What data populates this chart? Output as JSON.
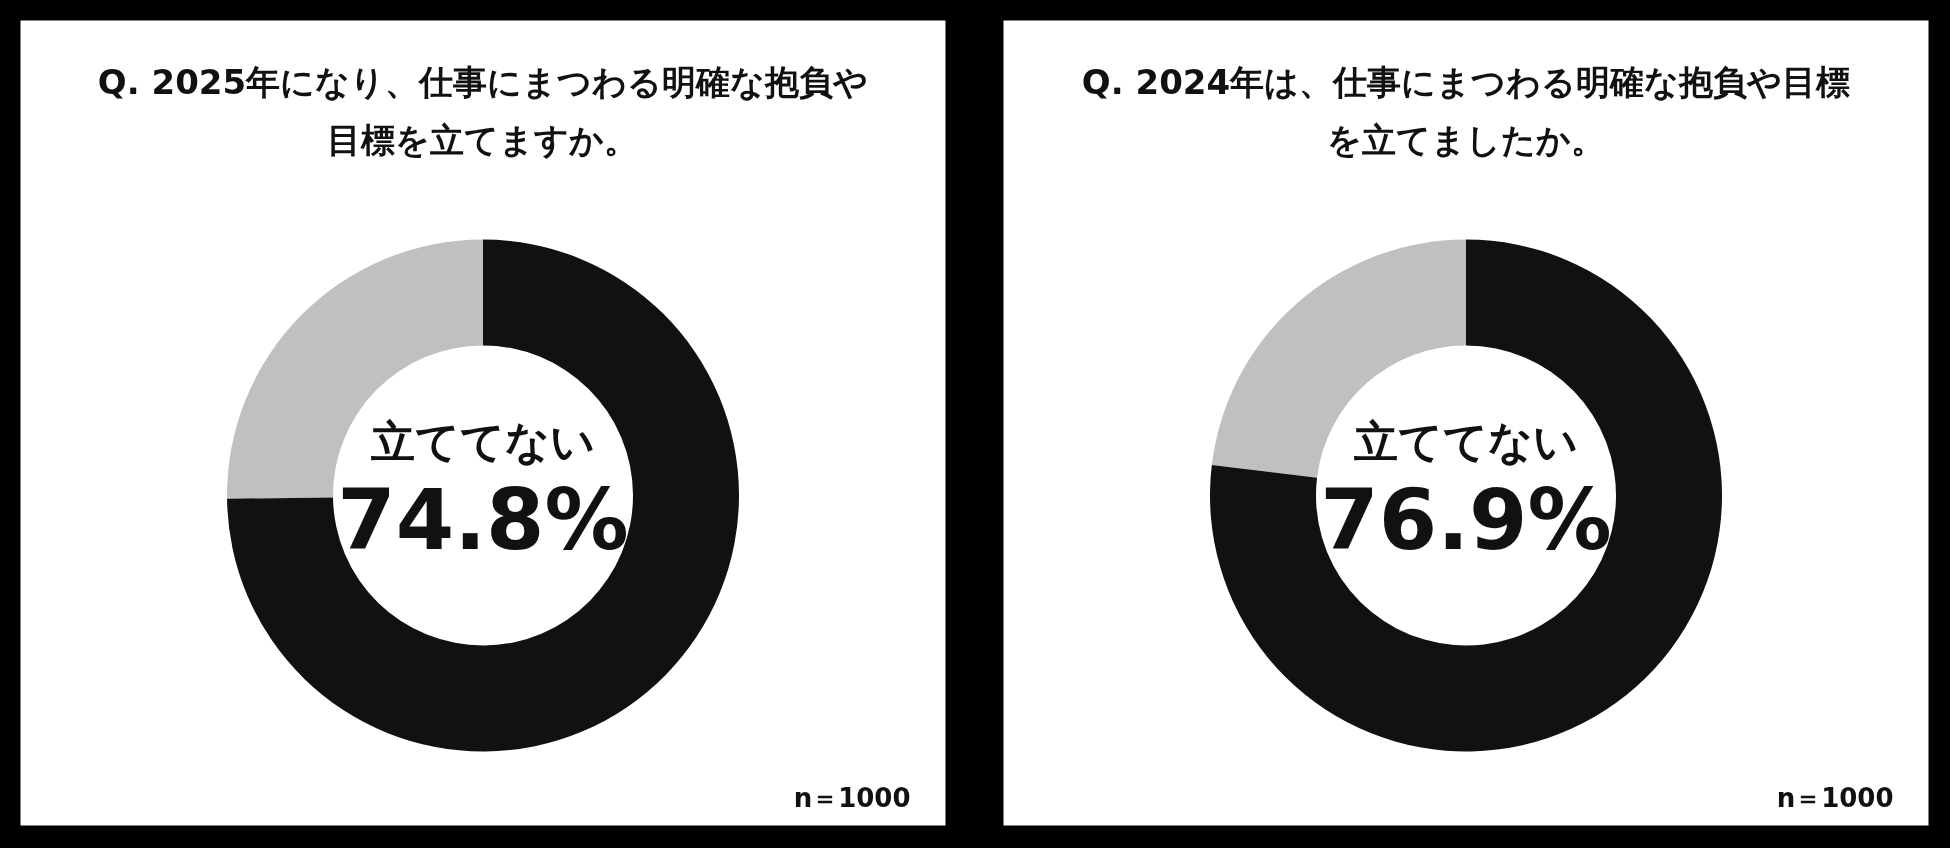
{
  "chart_data": [
    {
      "type": "donut",
      "title": "Q. 2025年になり、仕事にまつわる明確な抱負や目標を立てますか。",
      "categories": [
        "立ててない",
        null
      ],
      "values": [
        74.8,
        25.2
      ],
      "colors": [
        "#111111",
        "#c0c0c0"
      ],
      "value_labels": [
        "74.8%",
        null
      ],
      "annotations": [
        "n＝1000"
      ]
    },
    {
      "type": "donut",
      "title": "Q. 2024年は、仕事にまつわる明確な抱負や目標を立てましたか。",
      "categories": [
        "立ててない",
        null
      ],
      "values": [
        76.9,
        23.1
      ],
      "colors": [
        "#111111",
        "#c0c0c0"
      ],
      "value_labels": [
        "76.9%",
        null
      ],
      "annotations": [
        "n＝1000"
      ]
    }
  ]
}
